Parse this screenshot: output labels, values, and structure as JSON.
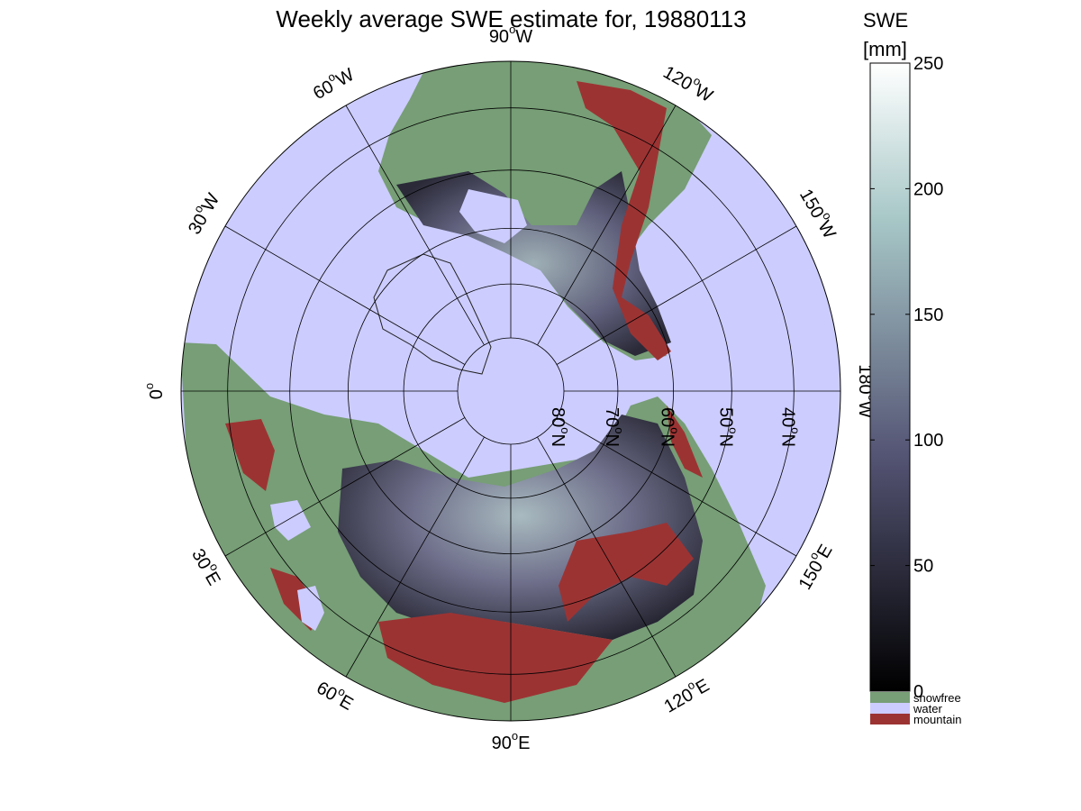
{
  "title": "Weekly average SWE estimate for, 19880113",
  "colorbar": {
    "title": "SWE",
    "unit": "[mm]",
    "range": [
      0,
      250
    ],
    "colormap": "bone",
    "ticks": [
      "0",
      "50",
      "100",
      "150",
      "200",
      "250"
    ]
  },
  "legend": [
    {
      "label": "snowfree",
      "color": "#779e76"
    },
    {
      "label": "water",
      "color": "#ccccff"
    },
    {
      "label": "mountain",
      "color": "#9c3333"
    }
  ],
  "map": {
    "projection": "polar stereographic (north pole)",
    "ocean_color": "#ccccff",
    "snowfree_color": "#779e76",
    "mountain_color": "#9c3333",
    "longitude_labels": [
      {
        "lon": -90,
        "text": "90",
        "suffix": "W"
      },
      {
        "lon": -60,
        "text": "60",
        "suffix": "W"
      },
      {
        "lon": -30,
        "text": "30",
        "suffix": "W"
      },
      {
        "lon": 0,
        "text": "0",
        "suffix": ""
      },
      {
        "lon": 30,
        "text": "30",
        "suffix": "E"
      },
      {
        "lon": 60,
        "text": "60",
        "suffix": "E"
      },
      {
        "lon": 90,
        "text": "90",
        "suffix": "E"
      },
      {
        "lon": 120,
        "text": "120",
        "suffix": "E"
      },
      {
        "lon": 150,
        "text": "150",
        "suffix": "E"
      },
      {
        "lon": 180,
        "text": "180",
        "suffix": "W"
      },
      {
        "lon": -150,
        "text": "150",
        "suffix": "W"
      },
      {
        "lon": -120,
        "text": "120",
        "suffix": "W"
      }
    ],
    "latitude_labels": [
      {
        "lat": 80,
        "text": "80",
        "suffix": "N"
      },
      {
        "lat": 70,
        "text": "70",
        "suffix": "N"
      },
      {
        "lat": 60,
        "text": "60",
        "suffix": "N"
      },
      {
        "lat": 50,
        "text": "50",
        "suffix": "N"
      },
      {
        "lat": 40,
        "text": "40",
        "suffix": "N"
      }
    ]
  }
}
